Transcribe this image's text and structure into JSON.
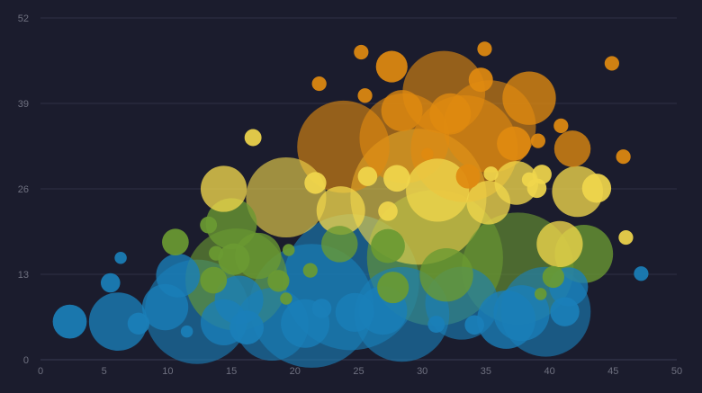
{
  "chart_data": {
    "type": "scatter",
    "variant": "bubble",
    "title": "",
    "xlabel": "",
    "ylabel": "",
    "xlim": [
      0,
      50
    ],
    "ylim": [
      0,
      52
    ],
    "x_ticks": [
      0,
      5,
      10,
      15,
      20,
      25,
      30,
      35,
      40,
      45,
      50
    ],
    "y_ticks": [
      0,
      13,
      26,
      39,
      52
    ],
    "x_tick_labels": [
      "0",
      "5",
      "10",
      "15",
      "20",
      "25",
      "30",
      "35",
      "40",
      "45",
      "50"
    ],
    "y_tick_labels": [
      "0",
      "13",
      "26",
      "39",
      "52"
    ],
    "grid": {
      "horizontal": true,
      "vertical": false
    },
    "legend": "none",
    "colors": {
      "background": "#1b1c2d",
      "grid": "#2f3145",
      "tick_label": "#6f7180",
      "blue": "#1a7fb8",
      "green": "#6a9a32",
      "yellow": "#f0d64c",
      "orange": "#e08a10"
    },
    "series": [
      {
        "color_key": "blue",
        "points": [
          {
            "x": 2.3,
            "y": 5.8,
            "size": 1.4
          },
          {
            "x": 6.1,
            "y": 5.8,
            "size": 2.4
          },
          {
            "x": 7.7,
            "y": 5.5,
            "size": 0.9
          },
          {
            "x": 5.5,
            "y": 11.7,
            "size": 0.8
          },
          {
            "x": 6.3,
            "y": 15.5,
            "size": 0.5
          },
          {
            "x": 9.8,
            "y": 8.0,
            "size": 1.9
          },
          {
            "x": 10.8,
            "y": 12.8,
            "size": 1.8
          },
          {
            "x": 11.5,
            "y": 4.3,
            "size": 0.5
          },
          {
            "x": 12.3,
            "y": 7.3,
            "size": 4.3
          },
          {
            "x": 14.4,
            "y": 5.7,
            "size": 1.9
          },
          {
            "x": 15.6,
            "y": 9.1,
            "size": 2.0
          },
          {
            "x": 16.2,
            "y": 4.9,
            "size": 1.4
          },
          {
            "x": 18.2,
            "y": 5.4,
            "size": 3.0
          },
          {
            "x": 21.3,
            "y": 8.2,
            "size": 5.1
          },
          {
            "x": 20.8,
            "y": 5.5,
            "size": 2.0
          },
          {
            "x": 22.1,
            "y": 7.8,
            "size": 0.8
          },
          {
            "x": 24.4,
            "y": 11.8,
            "size": 5.6
          },
          {
            "x": 24.7,
            "y": 7.2,
            "size": 1.6
          },
          {
            "x": 26.9,
            "y": 7.5,
            "size": 2.0
          },
          {
            "x": 28.4,
            "y": 6.9,
            "size": 3.9
          },
          {
            "x": 31.1,
            "y": 5.4,
            "size": 0.7
          },
          {
            "x": 33.1,
            "y": 8.6,
            "size": 3.0
          },
          {
            "x": 34.1,
            "y": 5.3,
            "size": 0.8
          },
          {
            "x": 36.6,
            "y": 6.1,
            "size": 2.4
          },
          {
            "x": 37.8,
            "y": 7.1,
            "size": 2.3
          },
          {
            "x": 39.7,
            "y": 7.3,
            "size": 3.7
          },
          {
            "x": 41.2,
            "y": 7.3,
            "size": 1.2
          },
          {
            "x": 41.5,
            "y": 11.1,
            "size": 1.6
          },
          {
            "x": 47.2,
            "y": 13.1,
            "size": 0.6
          }
        ]
      },
      {
        "color_key": "green",
        "points": [
          {
            "x": 10.6,
            "y": 17.9,
            "size": 1.1
          },
          {
            "x": 13.2,
            "y": 20.5,
            "size": 0.7
          },
          {
            "x": 13.8,
            "y": 16.2,
            "size": 0.6
          },
          {
            "x": 15.0,
            "y": 20.7,
            "size": 2.1
          },
          {
            "x": 15.4,
            "y": 12.2,
            "size": 4.2
          },
          {
            "x": 15.2,
            "y": 15.3,
            "size": 1.3
          },
          {
            "x": 17.1,
            "y": 15.8,
            "size": 1.9
          },
          {
            "x": 13.6,
            "y": 12.1,
            "size": 1.1
          },
          {
            "x": 18.7,
            "y": 12.0,
            "size": 0.9
          },
          {
            "x": 19.3,
            "y": 9.3,
            "size": 0.5
          },
          {
            "x": 19.5,
            "y": 16.7,
            "size": 0.5
          },
          {
            "x": 21.2,
            "y": 13.6,
            "size": 0.6
          },
          {
            "x": 23.5,
            "y": 17.6,
            "size": 1.5
          },
          {
            "x": 27.3,
            "y": 17.3,
            "size": 1.4
          },
          {
            "x": 27.7,
            "y": 11.0,
            "size": 1.3
          },
          {
            "x": 31.0,
            "y": 15.5,
            "size": 5.6
          },
          {
            "x": 31.9,
            "y": 12.9,
            "size": 2.2
          },
          {
            "x": 37.5,
            "y": 13.9,
            "size": 4.6
          },
          {
            "x": 39.3,
            "y": 10.0,
            "size": 0.5
          },
          {
            "x": 40.3,
            "y": 12.6,
            "size": 0.9
          },
          {
            "x": 42.7,
            "y": 16.1,
            "size": 2.4
          }
        ]
      },
      {
        "color_key": "yellow",
        "points": [
          {
            "x": 14.4,
            "y": 26.0,
            "size": 1.9
          },
          {
            "x": 16.7,
            "y": 33.8,
            "size": 0.7
          },
          {
            "x": 19.3,
            "y": 24.7,
            "size": 3.3
          },
          {
            "x": 21.6,
            "y": 26.9,
            "size": 0.9
          },
          {
            "x": 23.6,
            "y": 22.7,
            "size": 2.0
          },
          {
            "x": 25.7,
            "y": 27.9,
            "size": 0.8
          },
          {
            "x": 27.3,
            "y": 22.6,
            "size": 0.8
          },
          {
            "x": 28.0,
            "y": 27.6,
            "size": 1.1
          },
          {
            "x": 29.7,
            "y": 24.8,
            "size": 5.6
          },
          {
            "x": 31.2,
            "y": 25.8,
            "size": 2.6
          },
          {
            "x": 35.4,
            "y": 28.3,
            "size": 0.6
          },
          {
            "x": 35.2,
            "y": 23.9,
            "size": 1.8
          },
          {
            "x": 37.4,
            "y": 26.9,
            "size": 1.8
          },
          {
            "x": 38.4,
            "y": 27.4,
            "size": 0.6
          },
          {
            "x": 39.0,
            "y": 26.1,
            "size": 0.8
          },
          {
            "x": 39.4,
            "y": 28.2,
            "size": 0.8
          },
          {
            "x": 40.8,
            "y": 17.6,
            "size": 1.9
          },
          {
            "x": 42.2,
            "y": 25.6,
            "size": 2.1
          },
          {
            "x": 43.7,
            "y": 26.1,
            "size": 1.2
          },
          {
            "x": 46.0,
            "y": 18.6,
            "size": 0.6
          }
        ]
      },
      {
        "color_key": "orange",
        "points": [
          {
            "x": 21.9,
            "y": 42.0,
            "size": 0.6
          },
          {
            "x": 23.8,
            "y": 32.4,
            "size": 3.8
          },
          {
            "x": 25.2,
            "y": 46.8,
            "size": 0.6
          },
          {
            "x": 25.5,
            "y": 40.2,
            "size": 0.6
          },
          {
            "x": 27.6,
            "y": 44.6,
            "size": 1.3
          },
          {
            "x": 28.4,
            "y": 37.9,
            "size": 1.7
          },
          {
            "x": 28.6,
            "y": 33.7,
            "size": 3.7
          },
          {
            "x": 30.4,
            "y": 31.3,
            "size": 0.5
          },
          {
            "x": 31.7,
            "y": 40.7,
            "size": 3.4
          },
          {
            "x": 32.2,
            "y": 37.4,
            "size": 1.7
          },
          {
            "x": 33.3,
            "y": 32.1,
            "size": 4.4
          },
          {
            "x": 33.6,
            "y": 27.9,
            "size": 1.0
          },
          {
            "x": 34.6,
            "y": 42.6,
            "size": 1.0
          },
          {
            "x": 34.9,
            "y": 47.3,
            "size": 0.6
          },
          {
            "x": 35.3,
            "y": 35.5,
            "size": 3.8
          },
          {
            "x": 37.2,
            "y": 32.9,
            "size": 1.4
          },
          {
            "x": 38.4,
            "y": 39.8,
            "size": 2.2
          },
          {
            "x": 39.1,
            "y": 33.3,
            "size": 0.6
          },
          {
            "x": 40.9,
            "y": 35.6,
            "size": 0.6
          },
          {
            "x": 41.8,
            "y": 32.1,
            "size": 1.5
          },
          {
            "x": 44.9,
            "y": 45.1,
            "size": 0.6
          },
          {
            "x": 45.8,
            "y": 30.9,
            "size": 0.6
          }
        ]
      }
    ]
  }
}
